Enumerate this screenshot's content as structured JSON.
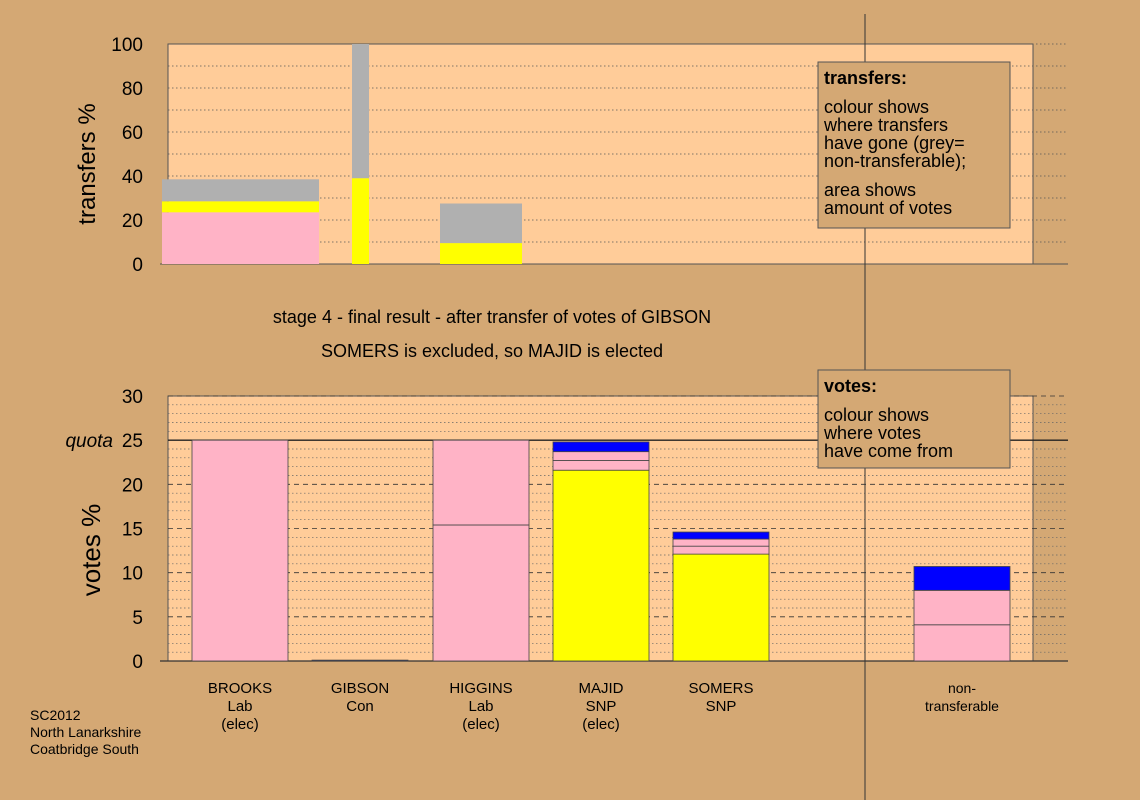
{
  "stage_title": "stage 4 - final result - after transfer of votes of GIBSON",
  "stage_subtitle": "SOMERS is excluded, so MAJID is elected",
  "footer": [
    "SC2012",
    "North Lanarkshire",
    "Coatbridge South"
  ],
  "colors": {
    "background": "#d4a874",
    "plot_area": "#ffcc99",
    "legend_box": "#d4a874",
    "Lab": "#ffb3c6",
    "Con": "#1a33cc",
    "SNP": "#ffff00",
    "non_transferable": "#b0b0b0",
    "blue": "#0000ff"
  },
  "legends": {
    "transfers": {
      "title": "transfers:",
      "lines": [
        "colour shows",
        "where transfers",
        "have gone (grey=",
        "non-transferable);",
        "area shows",
        "amount of votes"
      ]
    },
    "votes": {
      "title": "votes:",
      "lines": [
        "colour shows",
        "where votes",
        "have come from"
      ]
    }
  },
  "chart_data": [
    {
      "type": "bar",
      "ylabel": "transfers %",
      "ylim": [
        0,
        100
      ],
      "yticks": [
        0,
        20,
        40,
        60,
        80,
        100
      ],
      "grid": true,
      "note": "stacked bars; bar width is proportional to the votes transferred",
      "bars": [
        {
          "from": "BROOKS",
          "segments": [
            {
              "to": "Lab",
              "color": "#ffb3c6",
              "value": 23.5
            },
            {
              "to": "SNP",
              "color": "#ffff00",
              "value": 5
            },
            {
              "to": "non-transferable",
              "color": "#b0b0b0",
              "value": 10
            }
          ]
        },
        {
          "from": "GIBSON",
          "segments": [
            {
              "to": "SNP",
              "color": "#ffff00",
              "value": 39
            },
            {
              "to": "non-transferable",
              "color": "#b0b0b0",
              "value": 61
            }
          ]
        },
        {
          "from": "HIGGINS",
          "segments": [
            {
              "to": "SNP",
              "color": "#ffff00",
              "value": 9.5
            },
            {
              "to": "non-transferable",
              "color": "#b0b0b0",
              "value": 18
            }
          ]
        }
      ]
    },
    {
      "type": "bar",
      "ylabel": "votes %",
      "ylim": [
        0,
        30
      ],
      "yticks": [
        0,
        5,
        10,
        15,
        20,
        25,
        30
      ],
      "quota": 25,
      "quota_label": "quota",
      "grid": true,
      "candidates": [
        {
          "name": "BROOKS",
          "party": "Lab",
          "status": "(elec)",
          "segments": [
            {
              "color": "#ffb3c6",
              "value": 25
            }
          ]
        },
        {
          "name": "GIBSON",
          "party": "Con",
          "status": "",
          "segments": [
            {
              "color": "#1a33cc",
              "value": 0.1
            }
          ]
        },
        {
          "name": "HIGGINS",
          "party": "Lab",
          "status": "(elec)",
          "segments": [
            {
              "color": "#ffb3c6",
              "value": 15.4
            },
            {
              "color": "#ffb3c6",
              "value": 9.6
            }
          ]
        },
        {
          "name": "MAJID",
          "party": "SNP",
          "status": "(elec)",
          "segments": [
            {
              "color": "#ffff00",
              "value": 21.6
            },
            {
              "color": "#ffb3c6",
              "value": 1.1
            },
            {
              "color": "#ffb3c6",
              "value": 1
            },
            {
              "color": "#0000ff",
              "value": 1.1
            }
          ]
        },
        {
          "name": "SOMERS",
          "party": "SNP",
          "status": "",
          "segments": [
            {
              "color": "#ffff00",
              "value": 12.1
            },
            {
              "color": "#ffb3c6",
              "value": 0.9
            },
            {
              "color": "#ffb3c6",
              "value": 0.8
            },
            {
              "color": "#0000ff",
              "value": 0.8
            }
          ]
        },
        {
          "name": "non-",
          "party": "transferable",
          "status": "",
          "segments": [
            {
              "color": "#ffb3c6",
              "value": 4.1
            },
            {
              "color": "#ffb3c6",
              "value": 3.9
            },
            {
              "color": "#0000ff",
              "value": 2.7
            }
          ]
        }
      ]
    }
  ]
}
